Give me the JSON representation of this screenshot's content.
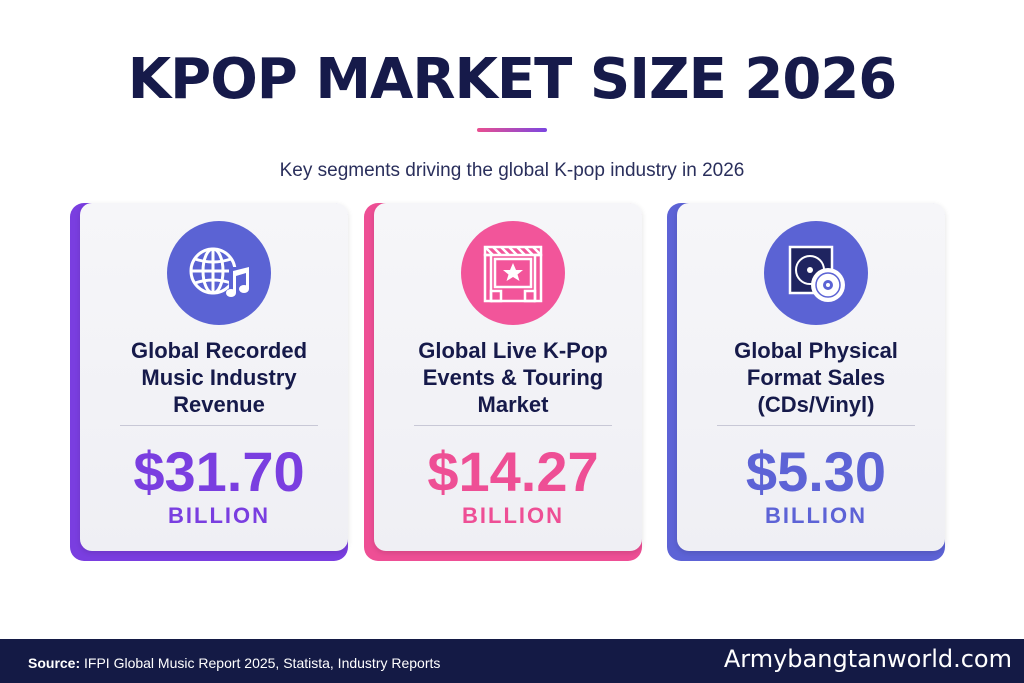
{
  "title": "KPOP MARKET SIZE 2026",
  "subtitle": "Key segments driving the global K-pop industry in 2026",
  "cards": [
    {
      "icon": "globe-music-icon",
      "label_lines": [
        "Global Recorded",
        "Music Industry",
        "Revenue"
      ],
      "value": "$31.70",
      "unit": "BILLION",
      "color": "#7a3ee0"
    },
    {
      "icon": "stage-star-icon",
      "label_lines": [
        "Global Live K-Pop",
        "Events & Touring",
        "Market"
      ],
      "value": "$14.27",
      "unit": "BILLION",
      "color": "#ee4f95"
    },
    {
      "icon": "vinyl-cd-icon",
      "label_lines": [
        "Global Physical",
        "Format Sales",
        "(CDs/Vinyl)"
      ],
      "value": "$5.30",
      "unit": "BILLION",
      "color": "#5d63d6"
    }
  ],
  "footer": {
    "source_label": "Source:",
    "source_text": " IFPI Global Music Report 2025, Statista, Industry Reports",
    "brand": "Armybangtanworld.com"
  }
}
